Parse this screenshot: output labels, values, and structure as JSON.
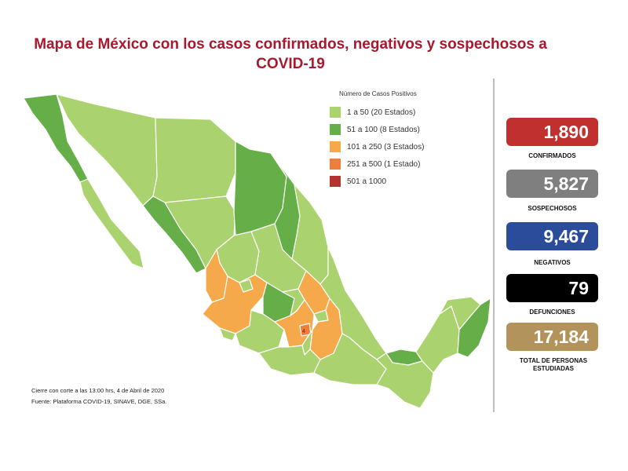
{
  "title_line1": "Mapa de México con los casos confirmados, negativos y sospechosos a",
  "title_line2": "COVID-19",
  "legend": {
    "title": "Número de Casos Positivos",
    "items": [
      {
        "label": "1 a    50  (20 Estados)",
        "color": "#aad26e"
      },
      {
        "label": "51 a   100  (8 Estados)",
        "color": "#66ae47"
      },
      {
        "label": "101 a   250  (3 Estados)",
        "color": "#f5a94a"
      },
      {
        "label": "251 a   500  (1 Estado)",
        "color": "#ee7e3b"
      },
      {
        "label": "501 a 1000",
        "color": "#b5322f"
      }
    ]
  },
  "stats": [
    {
      "value": "1,890",
      "label": "CONFIRMADOS",
      "color": "#c0302e"
    },
    {
      "value": "5,827",
      "label": "SOSPECHOSOS",
      "color": "#7f7f7f"
    },
    {
      "value": "9,467",
      "label": "NEGATIVOS",
      "color": "#2b4c9b"
    },
    {
      "value": "79",
      "label": "DEFUNCIONES",
      "color": "#000000"
    },
    {
      "value": "17,184",
      "label": "TOTAL DE PERSONAS ESTUDIADAS",
      "color": "#b3935c"
    }
  ],
  "footnote": {
    "line1": "Cierre con corte a las 13:00 hrs, 4 de Abril de 2020",
    "line2": "Fuente: Plataforma COVID-19, SINAVE, DGE, SSa."
  },
  "map_marker": "4",
  "region_colors": {
    "light": "#aad26e",
    "mid": "#66ae47",
    "orange": "#f5a94a",
    "dark_orange": "#ee7e3b",
    "border": "#ffffff"
  }
}
